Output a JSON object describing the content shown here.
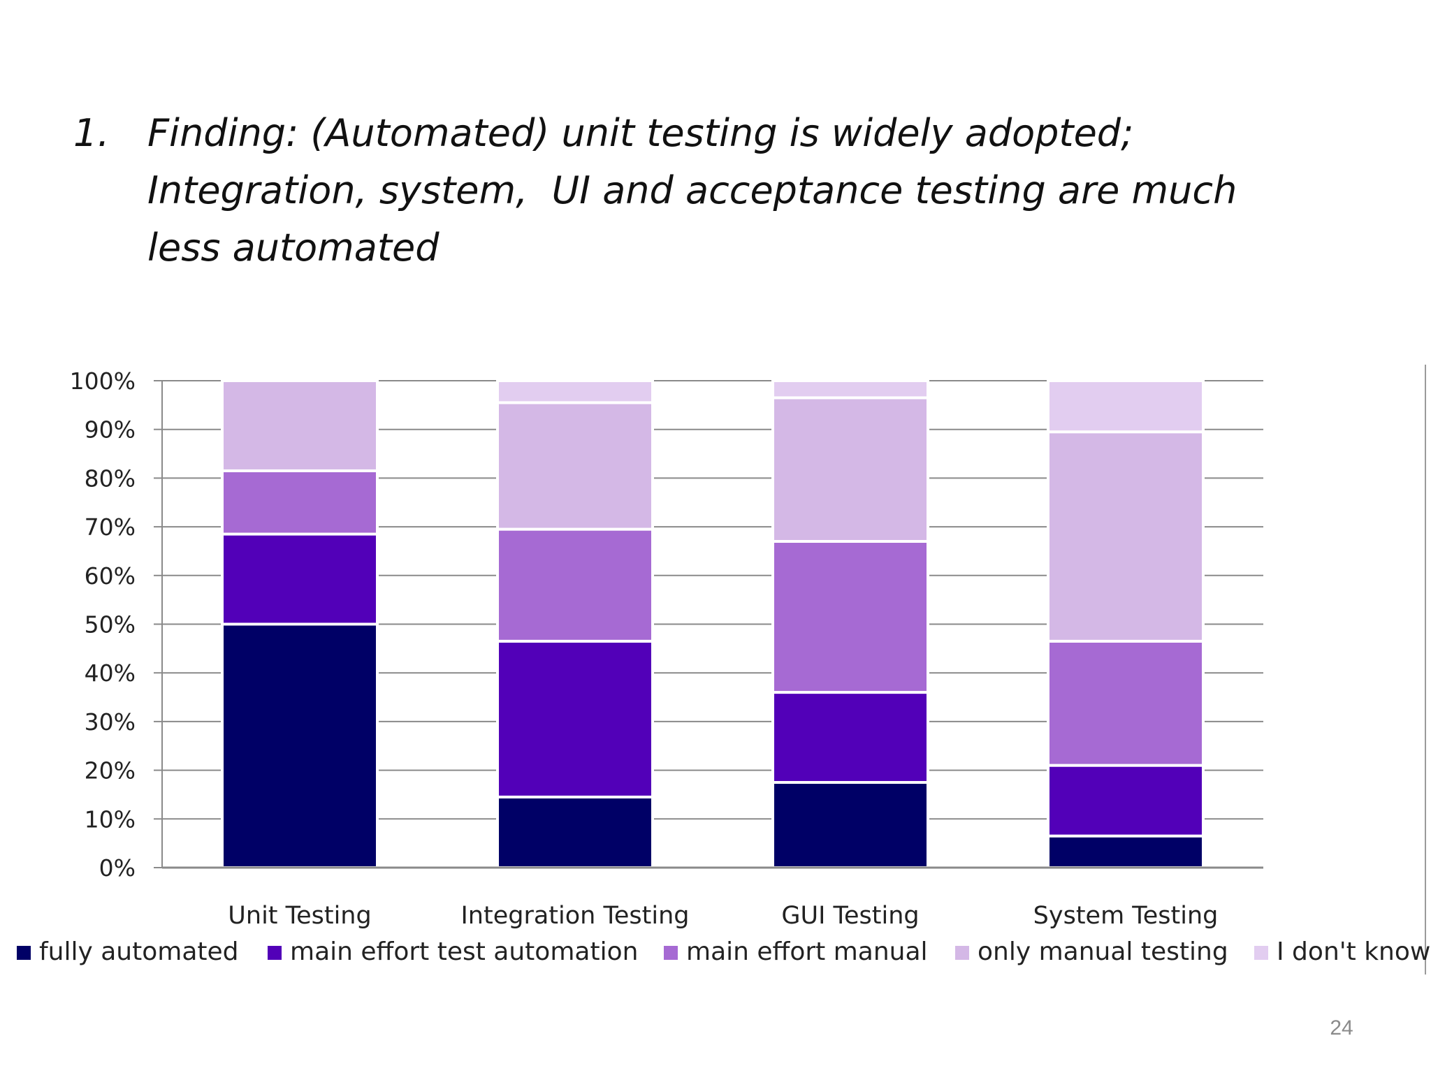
{
  "slide": {
    "heading_number": "1.",
    "heading_lines": [
      "Finding: (Automated) unit testing is widely adopted;",
      "Integration, system,  UI and acceptance testing are much",
      "less automated"
    ],
    "page_number": "24"
  },
  "colors": {
    "fully automated": "#000066",
    "main effort test automation": "#5200b8",
    "main effort manual": "#a66ad3",
    "only manual testing": "#d4b8e6",
    "I don't know": "#e2cdf0"
  },
  "chart_data": {
    "type": "bar",
    "stacked": true,
    "categories": [
      "Unit Testing",
      "Integration Testing",
      "GUI Testing",
      "System Testing"
    ],
    "series": [
      {
        "name": "fully automated",
        "values": [
          50,
          14.5,
          17.5,
          6.5
        ]
      },
      {
        "name": "main effort test automation",
        "values": [
          18.5,
          32,
          18.5,
          14.5
        ]
      },
      {
        "name": "main effort manual",
        "values": [
          13,
          23,
          31,
          25.5
        ]
      },
      {
        "name": "only manual testing",
        "values": [
          18.5,
          26,
          29.5,
          43
        ]
      },
      {
        "name": "I don't know",
        "values": [
          0,
          4.5,
          3.5,
          10.5
        ]
      }
    ],
    "ylim": [
      0,
      100
    ],
    "yticks": [
      "0%",
      "10%",
      "20%",
      "30%",
      "40%",
      "50%",
      "60%",
      "70%",
      "80%",
      "90%",
      "100%"
    ],
    "grid": true,
    "legend": "bottom",
    "title": "",
    "xlabel": "",
    "ylabel": ""
  }
}
